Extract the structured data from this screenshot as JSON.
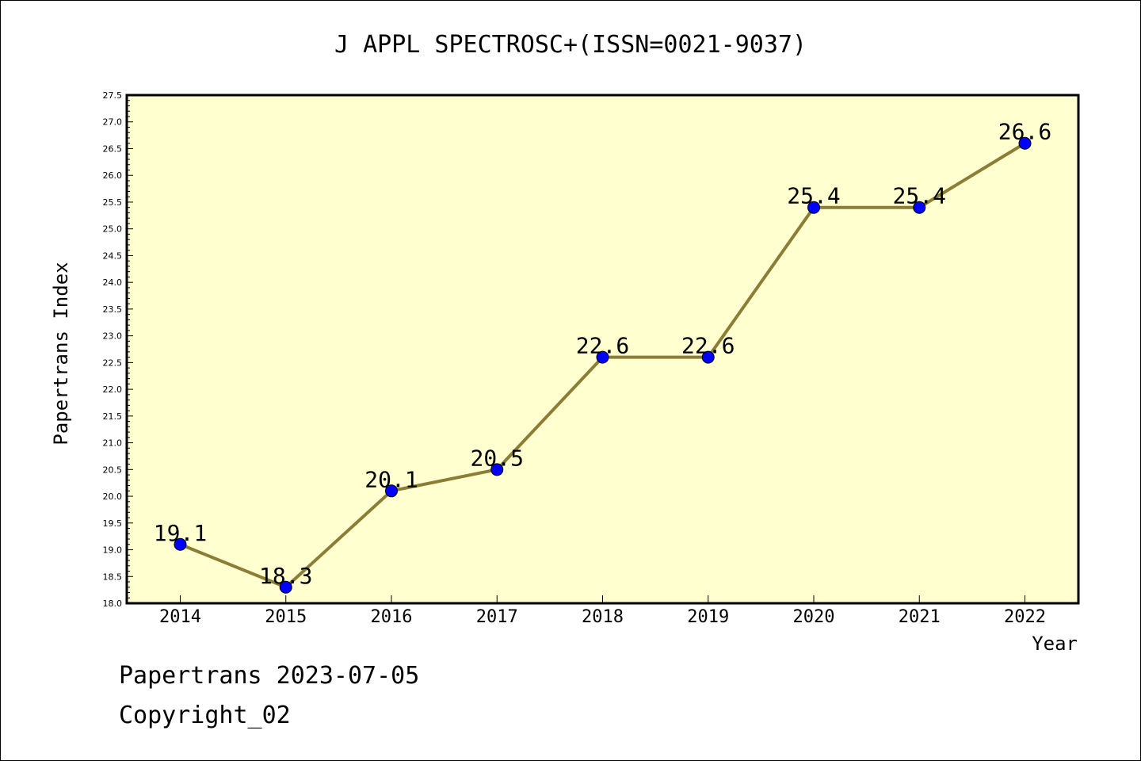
{
  "chart_data": {
    "type": "line",
    "title": "J APPL SPECTROSC+(ISSN=0021-9037)",
    "xlabel": "Year",
    "ylabel": "Papertrans Index",
    "categories": [
      "2014",
      "2015",
      "2016",
      "2017",
      "2018",
      "2019",
      "2020",
      "2021",
      "2022"
    ],
    "values": [
      19.1,
      18.3,
      20.1,
      20.5,
      22.6,
      22.6,
      25.4,
      25.4,
      26.6
    ],
    "data_labels": [
      "19.1",
      "18.3",
      "20.1",
      "20.5",
      "22.6",
      "22.6",
      "25.4",
      "25.4",
      "26.6"
    ],
    "ylim": [
      18.0,
      27.5
    ],
    "ytick_step": 0.5,
    "grid": false,
    "legend": "none",
    "colors": {
      "plot_background": "#ffffd0",
      "line": "#8b7d35",
      "marker": "#0000ff"
    }
  },
  "footer": {
    "line1": "Papertrans 2023-07-05",
    "line2": "Copyright_02"
  }
}
